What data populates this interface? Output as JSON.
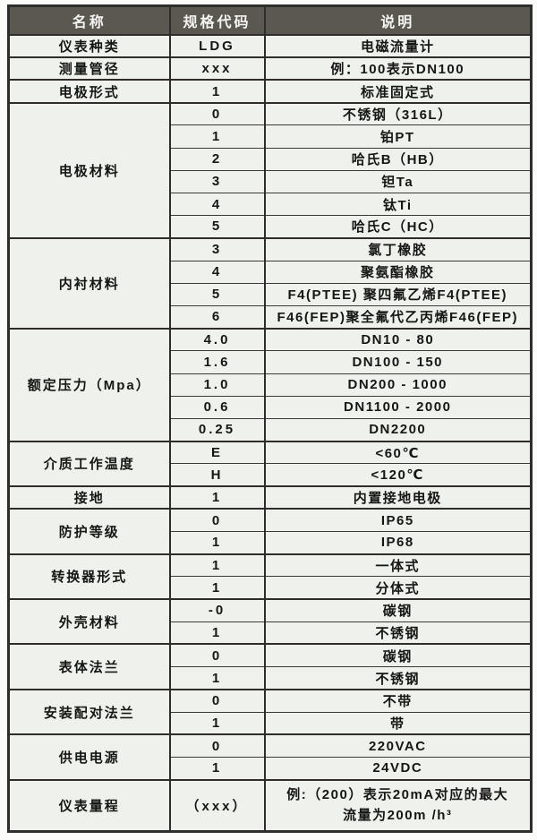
{
  "colors": {
    "header_bg": "#5b5852",
    "header_text": "#f4f4f1",
    "cell_bg": "#eff2ec",
    "border": "#2e2d29",
    "text": "#161614"
  },
  "table": {
    "columns": [
      "名称",
      "规格代码",
      "说明"
    ],
    "groups": [
      {
        "name": "仪表种类",
        "rows": [
          {
            "code": "LDG",
            "desc": "电磁流量计"
          }
        ]
      },
      {
        "name": "测量管径",
        "rows": [
          {
            "code": "xxx",
            "desc": "例：100表示DN100"
          }
        ]
      },
      {
        "name": "电极形式",
        "rows": [
          {
            "code": "1",
            "desc": "标准固定式"
          }
        ]
      },
      {
        "name": "电极材料",
        "rows": [
          {
            "code": "0",
            "desc": "不锈钢（316L）"
          },
          {
            "code": "1",
            "desc": "铂PT"
          },
          {
            "code": "2",
            "desc": "哈氏B（HB）"
          },
          {
            "code": "3",
            "desc": "钽Ta"
          },
          {
            "code": "4",
            "desc": "钛Ti"
          },
          {
            "code": "5",
            "desc": "哈氏C（HC）"
          }
        ]
      },
      {
        "name": "内衬材料",
        "rows": [
          {
            "code": "3",
            "desc": "氯丁橡胶"
          },
          {
            "code": "4",
            "desc": "聚氨酯橡胶"
          },
          {
            "code": "5",
            "desc": "F4(PTEE) 聚四氟乙烯F4(PTEE)"
          },
          {
            "code": "6",
            "desc": "F46(FEP)聚全氟代乙丙烯F46(FEP)"
          }
        ]
      },
      {
        "name": "额定压力（Mpa）",
        "rows": [
          {
            "code": "4.0",
            "desc": "DN10 - 80"
          },
          {
            "code": "1.6",
            "desc": "DN100 - 150"
          },
          {
            "code": "1.0",
            "desc": "DN200 - 1000"
          },
          {
            "code": "0.6",
            "desc": "DN1100 - 2000"
          },
          {
            "code": "0.25",
            "desc": "DN2200"
          }
        ]
      },
      {
        "name": "介质工作温度",
        "rows": [
          {
            "code": "E",
            "desc": "<60℃"
          },
          {
            "code": "H",
            "desc": "<120℃"
          }
        ]
      },
      {
        "name": "接地",
        "rows": [
          {
            "code": "1",
            "desc": "内置接地电极"
          }
        ]
      },
      {
        "name": "防护等级",
        "rows": [
          {
            "code": "0",
            "desc": "IP65"
          },
          {
            "code": "1",
            "desc": "IP68"
          }
        ]
      },
      {
        "name": "转换器形式",
        "rows": [
          {
            "code": "1",
            "desc": "一体式"
          },
          {
            "code": "1",
            "desc": "分体式"
          }
        ]
      },
      {
        "name": "外壳材料",
        "rows": [
          {
            "code": "-0",
            "desc": "碳钢"
          },
          {
            "code": "1",
            "desc": "不锈钢"
          }
        ]
      },
      {
        "name": "表体法兰",
        "rows": [
          {
            "code": "0",
            "desc": "碳钢"
          },
          {
            "code": "1",
            "desc": "不锈钢"
          }
        ]
      },
      {
        "name": "安装配对法兰",
        "rows": [
          {
            "code": "0",
            "desc": "不带"
          },
          {
            "code": "1",
            "desc": "带"
          }
        ]
      },
      {
        "name": "供电电源",
        "rows": [
          {
            "code": "0",
            "desc": "220VAC"
          },
          {
            "code": "1",
            "desc": "24VDC"
          }
        ]
      },
      {
        "name": "仪表量程",
        "rows": [
          {
            "code": "（xxx）",
            "desc_lines": [
              "例:（200）表示20mA对应的最大",
              "流量为200m /h³"
            ],
            "tall": true
          }
        ]
      }
    ]
  }
}
